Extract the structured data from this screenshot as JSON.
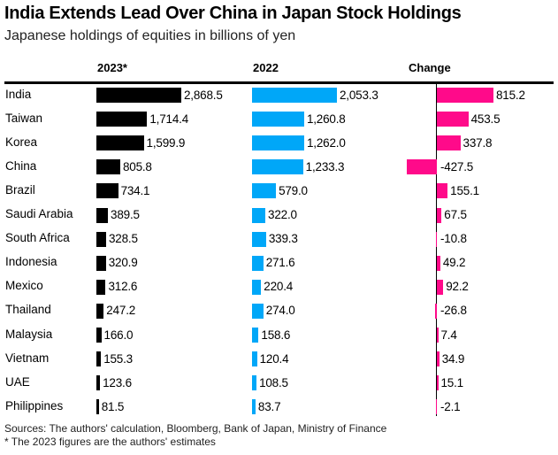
{
  "chart_data": {
    "type": "bar",
    "title": "India Extends Lead Over China in Japan Stock Holdings",
    "subtitle": "Japanese holdings of equities in billions of yen",
    "categories": [
      "India",
      "Taiwan",
      "Korea",
      "China",
      "Brazil",
      "Saudi Arabia",
      "South Africa",
      "Indonesia",
      "Mexico",
      "Thailand",
      "Malaysia",
      "Vietnam",
      "UAE",
      "Philippines"
    ],
    "series": [
      {
        "name": "2023*",
        "color": "#000000",
        "values": [
          2868.5,
          1714.4,
          1599.9,
          805.8,
          734.1,
          389.5,
          328.5,
          320.9,
          312.6,
          247.2,
          166.0,
          155.3,
          123.6,
          81.5
        ],
        "labels": [
          "2,868.5",
          "1,714.4",
          "1,599.9",
          "805.8",
          "734.1",
          "389.5",
          "328.5",
          "320.9",
          "312.6",
          "247.2",
          "166.0",
          "155.3",
          "123.6",
          "81.5"
        ]
      },
      {
        "name": "2022",
        "color": "#00a7f8",
        "values": [
          2053.3,
          1260.8,
          1262.0,
          1233.3,
          579.0,
          322.0,
          339.3,
          271.6,
          220.4,
          274.0,
          158.6,
          120.4,
          108.5,
          83.7
        ],
        "labels": [
          "2,053.3",
          "1,260.8",
          "1,262.0",
          "1,233.3",
          "579.0",
          "322.0",
          "339.3",
          "271.6",
          "220.4",
          "274.0",
          "158.6",
          "120.4",
          "108.5",
          "83.7"
        ]
      },
      {
        "name": "Change",
        "color": "#ff0a8a",
        "values": [
          815.2,
          453.5,
          337.8,
          -427.5,
          155.1,
          67.5,
          -10.8,
          49.2,
          92.2,
          -26.8,
          7.4,
          34.9,
          15.1,
          -2.1
        ],
        "labels": [
          "815.2",
          "453.5",
          "337.8",
          "-427.5",
          "155.1",
          "67.5",
          "-10.8",
          "49.2",
          "92.2",
          "-26.8",
          "7.4",
          "34.9",
          "15.1",
          "-2.1"
        ]
      }
    ],
    "xlabel": "",
    "ylabel": "",
    "grid": false,
    "legend": "none",
    "sources": "Sources: The authors' calculation, Bloomberg, Bank of Japan, Ministry of Finance",
    "note": "* The 2023 figures are the authors' estimates"
  }
}
